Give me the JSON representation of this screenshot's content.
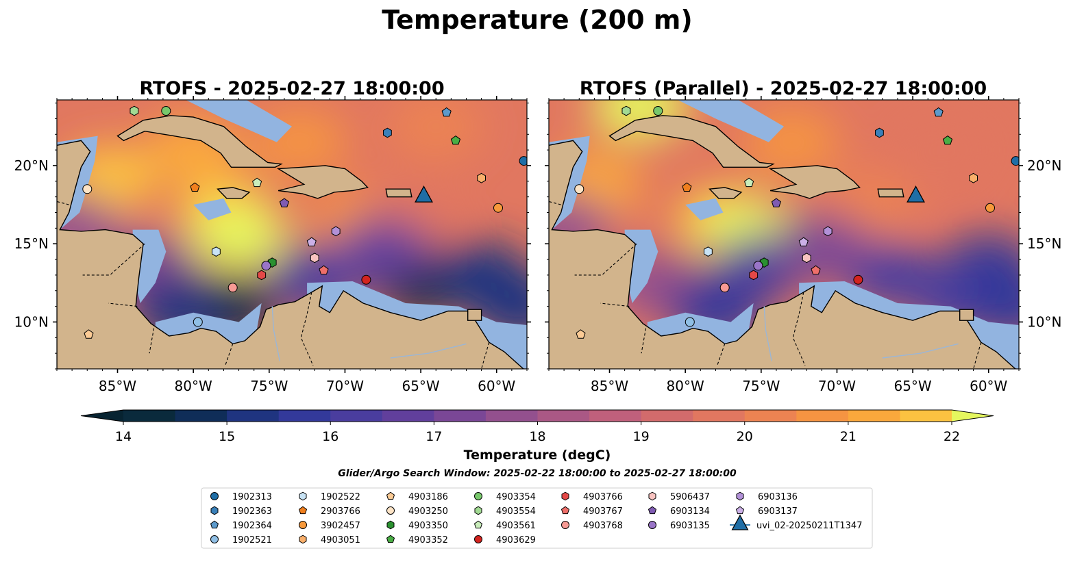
{
  "title": "Temperature (200 m)",
  "panels": [
    {
      "title": "RTOFS - 2025-02-27 18:00:00"
    },
    {
      "title": "RTOFS (Parallel) - 2025-02-27 18:00:00"
    }
  ],
  "map_extent": {
    "lon": [
      -89,
      -58
    ],
    "lat": [
      7,
      24.2
    ]
  },
  "lon_ticks": [
    {
      "value": -85,
      "label": "85°W"
    },
    {
      "value": -80,
      "label": "80°W"
    },
    {
      "value": -75,
      "label": "75°W"
    },
    {
      "value": -70,
      "label": "70°W"
    },
    {
      "value": -65,
      "label": "65°W"
    },
    {
      "value": -60,
      "label": "60°W"
    }
  ],
  "lat_ticks": [
    {
      "value": 10,
      "label": "10°N"
    },
    {
      "value": 15,
      "label": "15°N"
    },
    {
      "value": 20,
      "label": "20°N"
    }
  ],
  "colorbar": {
    "label": "Temperature (degC)",
    "min": 14,
    "max": 22,
    "step": 0.5,
    "ticks": [
      14,
      15,
      16,
      17,
      18,
      19,
      20,
      21,
      22
    ],
    "tick_labels": [
      "14",
      "15",
      "16",
      "17",
      "18",
      "19",
      "20",
      "21",
      "22"
    ],
    "colors": [
      "#0a2a3c",
      "#0f2d58",
      "#1f3480",
      "#33399a",
      "#4a3d9e",
      "#613f9c",
      "#7a4796",
      "#93508e",
      "#aa5885",
      "#c0607c",
      "#d26b6c",
      "#e17760",
      "#ec8352",
      "#f59442",
      "#faa83c",
      "#fcc241",
      "#f7dd55"
    ],
    "under_color": "#072331",
    "over_color": "#e5f75e"
  },
  "colors": {
    "land": "#d2b48c",
    "shelf": "#92b4e0",
    "deep": "#072331"
  },
  "search_window": "Glider/Argo Search Window: 2025-02-22 18:00:00 to 2025-02-27 18:00:00",
  "legend": {
    "columns": [
      [
        {
          "label": "1902313",
          "marker": "circle",
          "color": "#1f6ea6"
        },
        {
          "label": "1902363",
          "marker": "hexagon",
          "color": "#3a80b9"
        },
        {
          "label": "1902364",
          "marker": "pentagon",
          "color": "#5d9acb"
        },
        {
          "label": "1902521",
          "marker": "circle",
          "color": "#90bfe5"
        }
      ],
      [
        {
          "label": "1902522",
          "marker": "hexagon",
          "color": "#c8e3f5"
        },
        {
          "label": "2903766",
          "marker": "pentagon",
          "color": "#f07f1e"
        },
        {
          "label": "3902457",
          "marker": "circle",
          "color": "#f7993b"
        },
        {
          "label": "4903051",
          "marker": "hexagon",
          "color": "#fab06b"
        }
      ],
      [
        {
          "label": "4903186",
          "marker": "pentagon",
          "color": "#fccb95"
        },
        {
          "label": "4903250",
          "marker": "circle",
          "color": "#fde4c6"
        },
        {
          "label": "4903350",
          "marker": "hexagon",
          "color": "#2a9130"
        },
        {
          "label": "4903352",
          "marker": "pentagon",
          "color": "#4aae45"
        }
      ],
      [
        {
          "label": "4903354",
          "marker": "circle",
          "color": "#78c86c"
        },
        {
          "label": "4903554",
          "marker": "hexagon",
          "color": "#a2da93"
        },
        {
          "label": "4903561",
          "marker": "pentagon",
          "color": "#c9edbb"
        },
        {
          "label": "4903629",
          "marker": "circle",
          "color": "#d3241f"
        }
      ],
      [
        {
          "label": "4903766",
          "marker": "hexagon",
          "color": "#e44847"
        },
        {
          "label": "4903767",
          "marker": "pentagon",
          "color": "#ee6f6a"
        },
        {
          "label": "4903768",
          "marker": "circle",
          "color": "#f79a94"
        }
      ],
      [
        {
          "label": "5906437",
          "marker": "hexagon",
          "color": "#f9c3c0"
        },
        {
          "label": "6903134",
          "marker": "pentagon",
          "color": "#7f5bb2"
        },
        {
          "label": "6903135",
          "marker": "circle",
          "color": "#9a75c8"
        }
      ],
      [
        {
          "label": "6903136",
          "marker": "hexagon",
          "color": "#b291d8"
        },
        {
          "label": "6903137",
          "marker": "pentagon",
          "color": "#cbb0e6"
        },
        {
          "label": "uvi_02-20250211T1347",
          "marker": "triangle",
          "color": "#1f6ea6"
        }
      ]
    ]
  },
  "platforms": [
    {
      "id": "1902313",
      "lon": -58.2,
      "lat": 20.3,
      "marker": "circle",
      "color": "#1f6ea6"
    },
    {
      "id": "1902363",
      "lon": -67.2,
      "lat": 22.1,
      "marker": "hexagon",
      "color": "#3a80b9"
    },
    {
      "id": "1902364",
      "lon": -63.3,
      "lat": 23.4,
      "marker": "pentagon",
      "color": "#5d9acb"
    },
    {
      "id": "1902521",
      "lon": -79.7,
      "lat": 10.0,
      "marker": "circle",
      "color": "#90bfe5"
    },
    {
      "id": "1902522",
      "lon": -78.5,
      "lat": 14.5,
      "marker": "hexagon",
      "color": "#c8e3f5"
    },
    {
      "id": "2903766",
      "lon": -79.9,
      "lat": 18.6,
      "marker": "pentagon",
      "color": "#f07f1e"
    },
    {
      "id": "3902457",
      "lon": -59.9,
      "lat": 17.3,
      "marker": "circle",
      "color": "#f7993b"
    },
    {
      "id": "4903051",
      "lon": -61.0,
      "lat": 19.2,
      "marker": "hexagon",
      "color": "#fab06b"
    },
    {
      "id": "4903186",
      "lon": -86.9,
      "lat": 9.2,
      "marker": "pentagon",
      "color": "#fccb95"
    },
    {
      "id": "4903250",
      "lon": -87.0,
      "lat": 18.5,
      "marker": "circle",
      "color": "#fde4c6"
    },
    {
      "id": "4903350",
      "lon": -74.8,
      "lat": 13.8,
      "marker": "hexagon",
      "color": "#2a9130"
    },
    {
      "id": "4903352",
      "lon": -62.7,
      "lat": 21.6,
      "marker": "pentagon",
      "color": "#4aae45"
    },
    {
      "id": "4903354",
      "lon": -81.8,
      "lat": 23.5,
      "marker": "circle",
      "color": "#78c86c"
    },
    {
      "id": "4903554",
      "lon": -83.9,
      "lat": 23.5,
      "marker": "hexagon",
      "color": "#a2da93"
    },
    {
      "id": "4903561",
      "lon": -75.8,
      "lat": 18.9,
      "marker": "pentagon",
      "color": "#c9edbb"
    },
    {
      "id": "4903629",
      "lon": -68.6,
      "lat": 12.7,
      "marker": "circle",
      "color": "#d3241f"
    },
    {
      "id": "4903766",
      "lon": -75.5,
      "lat": 13.0,
      "marker": "hexagon",
      "color": "#e44847"
    },
    {
      "id": "4903767",
      "lon": -71.4,
      "lat": 13.3,
      "marker": "pentagon",
      "color": "#ee6f6a"
    },
    {
      "id": "4903768",
      "lon": -77.4,
      "lat": 12.2,
      "marker": "circle",
      "color": "#f79a94"
    },
    {
      "id": "5906437",
      "lon": -72.0,
      "lat": 14.1,
      "marker": "hexagon",
      "color": "#f9c3c0"
    },
    {
      "id": "6903134",
      "lon": -74.0,
      "lat": 17.6,
      "marker": "pentagon",
      "color": "#7f5bb2"
    },
    {
      "id": "6903135",
      "lon": -75.2,
      "lat": 13.6,
      "marker": "circle",
      "color": "#9a75c8"
    },
    {
      "id": "6903136",
      "lon": -70.6,
      "lat": 15.8,
      "marker": "hexagon",
      "color": "#b291d8"
    },
    {
      "id": "6903137",
      "lon": -72.2,
      "lat": 15.1,
      "marker": "pentagon",
      "color": "#cbb0e6"
    }
  ],
  "glider": {
    "id": "uvi_02-20250211T1347",
    "lon": -64.8,
    "lat": 18.1,
    "marker": "triangle",
    "color": "#1f6ea6"
  },
  "temperature_field_rtofs": [
    {
      "lon": -85.5,
      "lat": 19.2,
      "value": 21.8
    },
    {
      "lon": -78.0,
      "lat": 17.2,
      "value": 21.9
    },
    {
      "lon": -77.0,
      "lat": 15.5,
      "value": 22.0
    },
    {
      "lon": -80.0,
      "lat": 21.0,
      "value": 21.0
    },
    {
      "lon": -69.0,
      "lat": 16.5,
      "value": 20.5
    },
    {
      "lon": -64.0,
      "lat": 22.5,
      "value": 20.3
    },
    {
      "lon": -66.0,
      "lat": 16.5,
      "value": 19.7
    },
    {
      "lon": -73.0,
      "lat": 21.5,
      "value": 20.8
    },
    {
      "lon": -88.0,
      "lat": 16.0,
      "value": 17.5
    },
    {
      "lon": -83.0,
      "lat": 13.5,
      "value": 17.0
    },
    {
      "lon": -72.0,
      "lat": 12.8,
      "value": 16.2
    },
    {
      "lon": -77.8,
      "lat": 11.0,
      "value": 14.0
    },
    {
      "lon": -81.0,
      "lat": 10.8,
      "value": 15.0
    },
    {
      "lon": -65.0,
      "lat": 12.5,
      "value": 14.0
    },
    {
      "lon": -61.0,
      "lat": 13.0,
      "value": 15.0
    },
    {
      "lon": -67.5,
      "lat": 14.5,
      "value": 16.5
    },
    {
      "lon": -58.5,
      "lat": 11.0,
      "value": 15.2
    }
  ],
  "temperature_field_parallel": [
    {
      "lon": -86.0,
      "lat": 18.8,
      "value": 21.0
    },
    {
      "lon": -77.5,
      "lat": 16.5,
      "value": 21.8
    },
    {
      "lon": -76.0,
      "lat": 15.8,
      "value": 22.0
    },
    {
      "lon": -83.0,
      "lat": 23.8,
      "value": 22.0
    },
    {
      "lon": -68.0,
      "lat": 17.5,
      "value": 20.2
    },
    {
      "lon": -63.0,
      "lat": 21.0,
      "value": 19.9
    },
    {
      "lon": -73.0,
      "lat": 21.5,
      "value": 20.5
    },
    {
      "lon": -88.0,
      "lat": 16.0,
      "value": 17.5
    },
    {
      "lon": -82.0,
      "lat": 12.5,
      "value": 17.5
    },
    {
      "lon": -78.0,
      "lat": 10.8,
      "value": 15.8
    },
    {
      "lon": -75.0,
      "lat": 13.5,
      "value": 16.3
    },
    {
      "lon": -66.5,
      "lat": 13.0,
      "value": 16.2
    },
    {
      "lon": -60.0,
      "lat": 13.5,
      "value": 15.8
    },
    {
      "lon": -62.0,
      "lat": 11.5,
      "value": 16.0
    },
    {
      "lon": -71.0,
      "lat": 14.8,
      "value": 17.3
    },
    {
      "lon": -58.5,
      "lat": 11.0,
      "value": 15.8
    }
  ]
}
